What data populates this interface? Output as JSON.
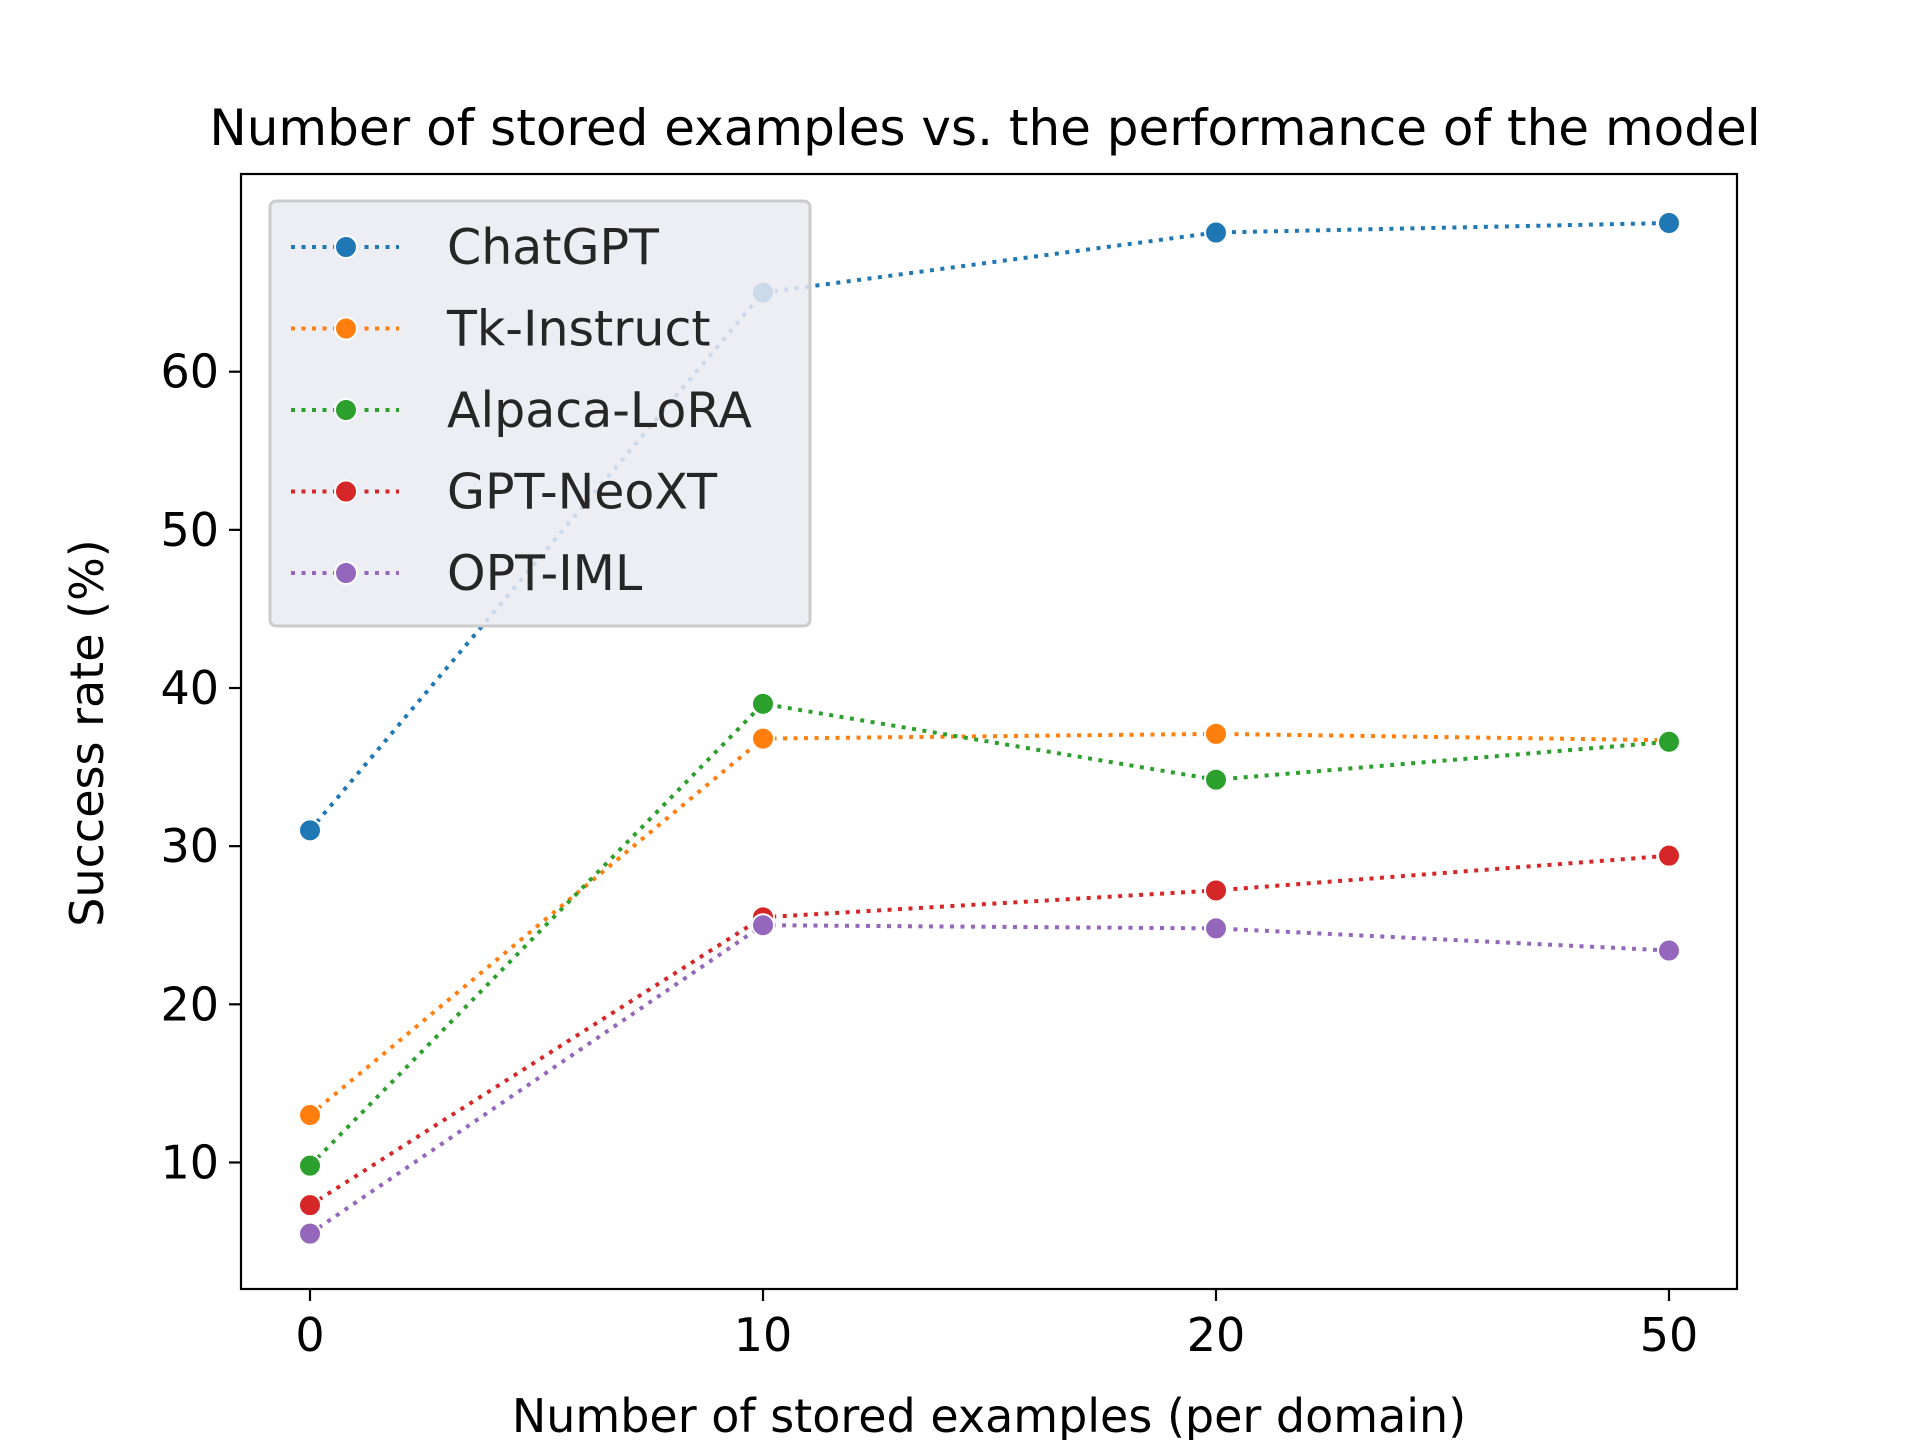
{
  "chart_data": {
    "type": "line",
    "title": "Number of stored examples vs. the performance of the model",
    "xlabel": "Number of stored examples (per domain)",
    "ylabel": "Success rate (%)",
    "categories": [
      "0",
      "10",
      "20",
      "50"
    ],
    "yticks": [
      10,
      20,
      30,
      40,
      50,
      60
    ],
    "ylim": [
      2.0,
      72.5
    ],
    "grid": false,
    "legend_position": "top-left",
    "line_style": "dotted",
    "series": [
      {
        "name": "ChatGPT",
        "color": "#1f77b4",
        "values": [
          31.0,
          65.0,
          68.8,
          69.4
        ]
      },
      {
        "name": "Tk-Instruct",
        "color": "#ff7f0e",
        "values": [
          13.0,
          36.8,
          37.1,
          36.7
        ]
      },
      {
        "name": "Alpaca-LoRA",
        "color": "#2ca02c",
        "values": [
          9.8,
          39.0,
          34.2,
          36.6
        ]
      },
      {
        "name": "GPT-NeoXT",
        "color": "#d62728",
        "values": [
          7.3,
          25.5,
          27.2,
          29.4
        ]
      },
      {
        "name": "OPT-IML",
        "color": "#9467bd",
        "values": [
          5.5,
          25.0,
          24.8,
          23.4
        ]
      }
    ]
  }
}
